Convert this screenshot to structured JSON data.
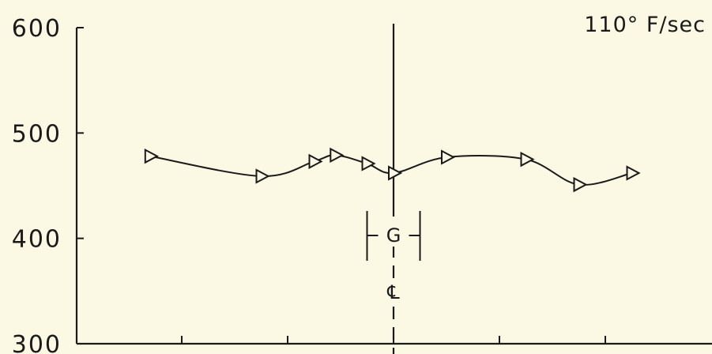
{
  "chart_data": {
    "type": "line",
    "title": "",
    "rate_label": "110° F/sec",
    "xlabel": "",
    "ylabel": "",
    "ylim": [
      300,
      600
    ],
    "yticks": [
      300,
      400,
      500,
      600
    ],
    "xlim": [
      -5,
      5
    ],
    "xticks": [
      -2,
      -1,
      0,
      1,
      2
    ],
    "grid": false,
    "series": [
      {
        "marker": "triangle-right",
        "color": "#1a1a1a",
        "points": [
          {
            "x": -2.3,
            "y": 478
          },
          {
            "x": -1.25,
            "y": 459
          },
          {
            "x": -0.75,
            "y": 473
          },
          {
            "x": -0.55,
            "y": 479
          },
          {
            "x": -0.25,
            "y": 471
          },
          {
            "x": 0.0,
            "y": 462
          },
          {
            "x": 0.5,
            "y": 477
          },
          {
            "x": 1.25,
            "y": 475
          },
          {
            "x": 1.75,
            "y": 451
          },
          {
            "x": 2.25,
            "y": 462
          }
        ]
      }
    ],
    "annotations": {
      "center_marker": "G",
      "centerline_symbol": "℄"
    }
  }
}
